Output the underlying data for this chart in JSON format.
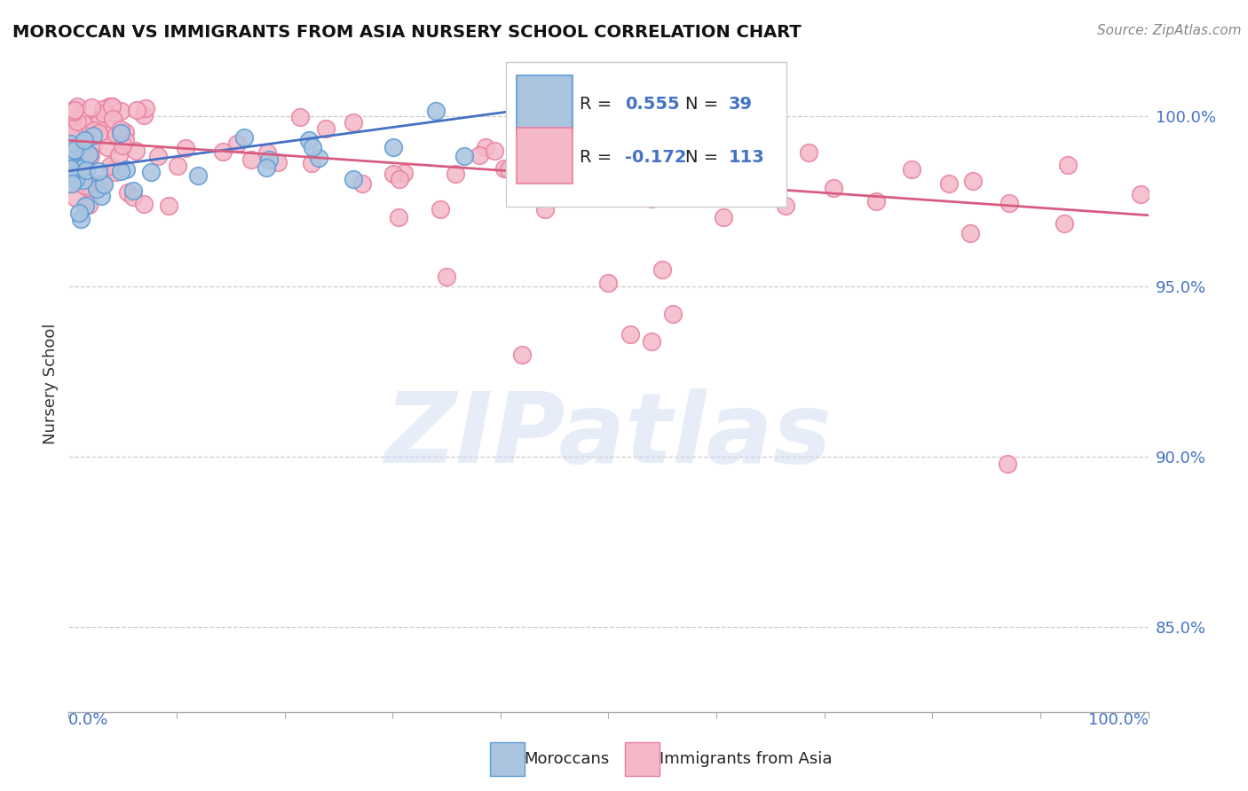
{
  "title": "MOROCCAN VS IMMIGRANTS FROM ASIA NURSERY SCHOOL CORRELATION CHART",
  "source": "Source: ZipAtlas.com",
  "ylabel": "Nursery School",
  "yticks": [
    0.85,
    0.9,
    0.95,
    1.0
  ],
  "ytick_labels": [
    "85.0%",
    "90.0%",
    "95.0%",
    "100.0%"
  ],
  "xlim": [
    0.0,
    1.0
  ],
  "ylim": [
    0.825,
    1.018
  ],
  "blue_color": "#aac4e0",
  "pink_color": "#f4b8c8",
  "blue_edge_color": "#5b9bd5",
  "pink_edge_color": "#e87fa0",
  "blue_line_color": "#4472c4",
  "pink_line_color": "#d85c80",
  "background_color": "#ffffff",
  "watermark": "ZIPatlas",
  "watermark_color": "#c8d8f0",
  "grid_color": "#cccccc",
  "axis_color": "#aaaaaa",
  "title_color": "#111111",
  "source_color": "#888888",
  "ylabel_color": "#333333",
  "tick_label_color": "#4472c4",
  "legend_r_color": "#111111",
  "legend_n_color": "#4472c4",
  "legend_val_color": "#4472c4",
  "blue_trend_x": [
    0.0,
    0.42
  ],
  "blue_trend_y": [
    0.984,
    1.002
  ],
  "pink_trend_x": [
    0.0,
    1.0
  ],
  "pink_trend_y": [
    0.993,
    0.971
  ]
}
